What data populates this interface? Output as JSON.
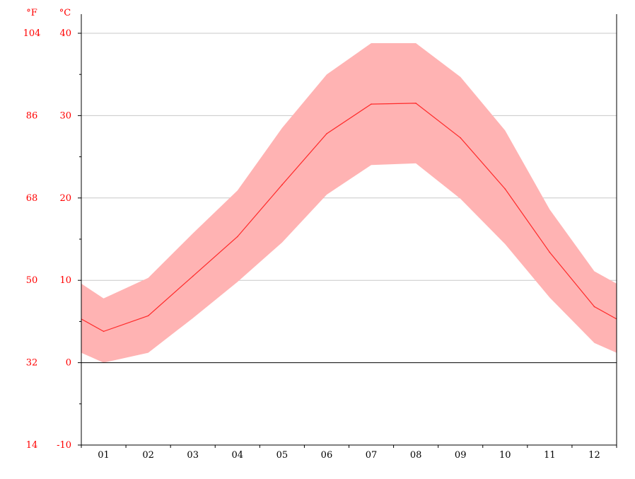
{
  "chart_data": {
    "type": "area",
    "categories": [
      "01",
      "02",
      "03",
      "04",
      "05",
      "06",
      "07",
      "08",
      "09",
      "10",
      "11",
      "12"
    ],
    "series": [
      {
        "values": [
          3.8,
          5.7,
          10.5,
          15.3,
          21.6,
          27.8,
          31.4,
          31.5,
          27.3,
          21.1,
          13.4,
          6.8
        ]
      },
      {
        "values": [
          7.8,
          10.3,
          15.7,
          20.9,
          28.5,
          35.0,
          38.8,
          38.8,
          34.7,
          28.2,
          18.6,
          11.1
        ]
      },
      {
        "values": [
          0.0,
          1.2,
          5.4,
          9.8,
          14.6,
          20.4,
          24.0,
          24.2,
          19.9,
          14.4,
          7.9,
          2.4
        ]
      }
    ],
    "edge_values": {
      "mean": [
        5.3,
        5.3
      ],
      "max": [
        9.6,
        9.6
      ],
      "min": [
        1.2,
        1.2
      ]
    },
    "ylim": [
      -10,
      40
    ],
    "y_ticks_c": [
      "-10",
      "0",
      "10",
      "20",
      "30",
      "40"
    ],
    "y_ticks_f": [
      "14",
      "32",
      "50",
      "68",
      "86",
      "104"
    ],
    "unit_c": "°C",
    "unit_f": "°F",
    "grid": true,
    "colors": {
      "band": "#ffb3b3",
      "line": "#ff2a2a",
      "labels": "#ff0000",
      "axis": "#000000",
      "grid": "#c8c8c8"
    }
  }
}
